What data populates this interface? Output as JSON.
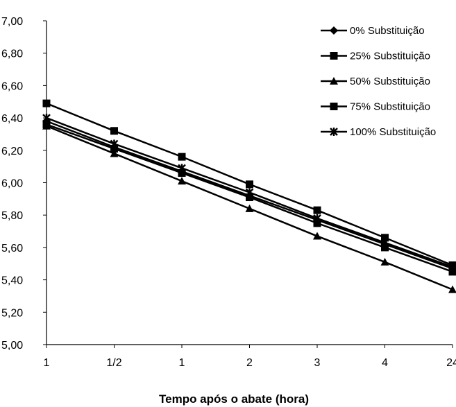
{
  "chart_data": {
    "type": "line",
    "title": "",
    "xlabel": "Tempo após o abate (hora)",
    "ylabel": "",
    "categories": [
      "1",
      "1/2",
      "1",
      "2",
      "3",
      "4",
      "24"
    ],
    "ylim": [
      5.0,
      7.0
    ],
    "yticks": [
      "5,00",
      "5,20",
      "5,40",
      "5,60",
      "5,80",
      "6,00",
      "6,20",
      "6,40",
      "6,60",
      "6,80",
      "7,00"
    ],
    "grid": false,
    "legend_position": "top-right",
    "series": [
      {
        "name": "0% Substituição",
        "marker": "diamond",
        "values": [
          6.38,
          6.22,
          6.07,
          5.92,
          5.77,
          5.62,
          5.47
        ]
      },
      {
        "name": "25% Substituição",
        "marker": "square",
        "values": [
          6.49,
          6.32,
          6.16,
          5.99,
          5.83,
          5.66,
          5.49
        ]
      },
      {
        "name": "50% Substituição",
        "marker": "triangle",
        "values": [
          6.35,
          6.18,
          6.01,
          5.84,
          5.67,
          5.51,
          5.34
        ]
      },
      {
        "name": "75% Substituição",
        "marker": "square",
        "values": [
          6.36,
          6.21,
          6.06,
          5.91,
          5.75,
          5.6,
          5.45
        ]
      },
      {
        "name": "100% Substituição",
        "marker": "star",
        "values": [
          6.4,
          6.24,
          6.09,
          5.94,
          5.78,
          5.63,
          5.48
        ]
      }
    ],
    "colors": {
      "line": "#000000",
      "background": "#ffffff"
    }
  }
}
